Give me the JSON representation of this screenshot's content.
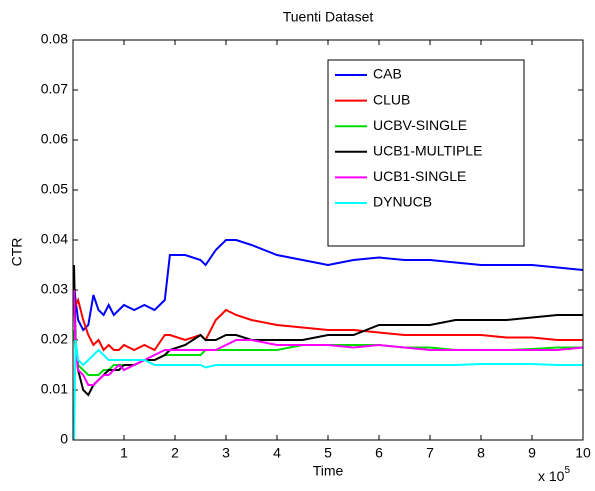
{
  "chart_data": {
    "type": "line",
    "title": "Tuenti Dataset",
    "x_label": "Time",
    "y_label": "CTR",
    "x_multiplier": {
      "base": "x 10",
      "exponent": "5"
    },
    "x": [
      0.02,
      0.05,
      0.1,
      0.2,
      0.3,
      0.4,
      0.5,
      0.6,
      0.7,
      0.8,
      0.9,
      1.0,
      1.2,
      1.4,
      1.6,
      1.8,
      1.9,
      2.2,
      2.5,
      2.6,
      2.8,
      3.0,
      3.2,
      3.5,
      4,
      4.5,
      5,
      5.5,
      6,
      6.5,
      7,
      7.5,
      8,
      8.5,
      9,
      9.5,
      10
    ],
    "series": [
      {
        "name": "CAB",
        "color": "#0000ff",
        "values": [
          0.031,
          0.028,
          0.024,
          0.022,
          0.023,
          0.029,
          0.026,
          0.025,
          0.027,
          0.025,
          0.026,
          0.027,
          0.026,
          0.027,
          0.026,
          0.028,
          0.037,
          0.037,
          0.036,
          0.035,
          0.038,
          0.04,
          0.04,
          0.039,
          0.037,
          0.036,
          0.035,
          0.036,
          0.0365,
          0.036,
          0.036,
          0.0355,
          0.035,
          0.035,
          0.035,
          0.0345,
          0.034
        ]
      },
      {
        "name": "CLUB",
        "color": "#ff0000",
        "values": [
          0.025,
          0.027,
          0.028,
          0.024,
          0.021,
          0.019,
          0.02,
          0.018,
          0.019,
          0.018,
          0.018,
          0.019,
          0.018,
          0.019,
          0.018,
          0.021,
          0.021,
          0.02,
          0.021,
          0.02,
          0.024,
          0.026,
          0.025,
          0.024,
          0.023,
          0.0225,
          0.022,
          0.022,
          0.0215,
          0.021,
          0.021,
          0.021,
          0.021,
          0.0205,
          0.0205,
          0.02,
          0.02
        ]
      },
      {
        "name": "UCBV-SINGLE",
        "color": "#00dd00",
        "values": [
          0.022,
          0.018,
          0.015,
          0.014,
          0.013,
          0.013,
          0.013,
          0.014,
          0.014,
          0.015,
          0.015,
          0.015,
          0.015,
          0.016,
          0.016,
          0.017,
          0.017,
          0.017,
          0.017,
          0.018,
          0.018,
          0.018,
          0.018,
          0.018,
          0.018,
          0.019,
          0.019,
          0.019,
          0.019,
          0.0185,
          0.0185,
          0.018,
          0.018,
          0.018,
          0.0182,
          0.0185,
          0.0185
        ]
      },
      {
        "name": "UCB1-MULTIPLE",
        "color": "#000000",
        "values": [
          0.035,
          0.02,
          0.014,
          0.01,
          0.009,
          0.011,
          0.012,
          0.013,
          0.014,
          0.014,
          0.014,
          0.015,
          0.015,
          0.016,
          0.016,
          0.017,
          0.018,
          0.019,
          0.021,
          0.02,
          0.02,
          0.021,
          0.021,
          0.02,
          0.02,
          0.02,
          0.021,
          0.021,
          0.023,
          0.023,
          0.023,
          0.024,
          0.024,
          0.024,
          0.0245,
          0.025,
          0.025
        ]
      },
      {
        "name": "UCB1-SINGLE",
        "color": "#ff00ff",
        "values": [
          0.03,
          0.018,
          0.014,
          0.013,
          0.011,
          0.011,
          0.012,
          0.013,
          0.013,
          0.014,
          0.015,
          0.014,
          0.015,
          0.016,
          0.017,
          0.018,
          0.018,
          0.018,
          0.018,
          0.018,
          0.018,
          0.019,
          0.02,
          0.02,
          0.019,
          0.019,
          0.019,
          0.0185,
          0.019,
          0.0185,
          0.018,
          0.018,
          0.018,
          0.018,
          0.018,
          0.018,
          0.0185
        ]
      },
      {
        "name": "DYNUCB",
        "color": "#00ffff",
        "values": [
          0.0,
          0.02,
          0.016,
          0.015,
          0.016,
          0.017,
          0.018,
          0.017,
          0.016,
          0.016,
          0.016,
          0.016,
          0.016,
          0.016,
          0.015,
          0.015,
          0.015,
          0.015,
          0.015,
          0.0145,
          0.015,
          0.015,
          0.015,
          0.015,
          0.015,
          0.015,
          0.015,
          0.015,
          0.015,
          0.015,
          0.015,
          0.015,
          0.0152,
          0.0152,
          0.0152,
          0.015,
          0.015
        ]
      }
    ],
    "xlim": [
      0,
      10
    ],
    "xticks": [
      1,
      2,
      3,
      4,
      5,
      6,
      7,
      8,
      9,
      10
    ],
    "ylim": [
      0,
      0.08
    ],
    "yticks": [
      0,
      0.01,
      0.02,
      0.03,
      0.04,
      0.05,
      0.06,
      0.07,
      0.08
    ],
    "legend": "upper-right"
  }
}
